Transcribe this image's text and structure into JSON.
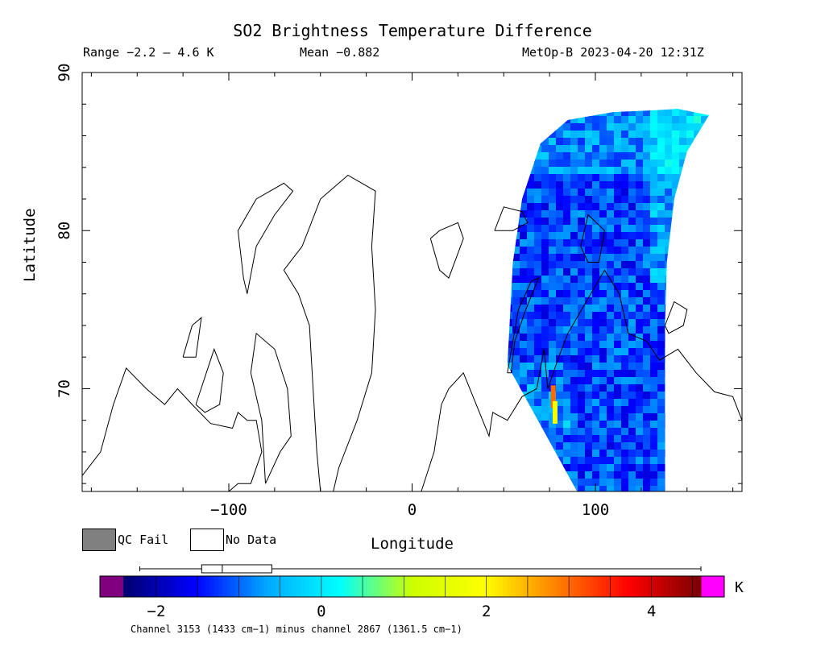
{
  "title": "SO2 Brightness Temperature Difference",
  "header": {
    "range": "Range −2.2 – 4.6 K",
    "mean": "Mean −0.882",
    "satellite_time": "MetOp-B 2023-04-20 12:31Z"
  },
  "legend": {
    "qc_fail": "QC Fail",
    "no_data": "No Data"
  },
  "colorbar": {
    "min": -2.4,
    "max": 4.6,
    "ticks": [
      -2,
      0,
      2,
      4
    ],
    "tick_labels": [
      "−2",
      "0",
      "2",
      "4"
    ],
    "units": "K",
    "under_color": "#800080",
    "over_color": "#ff00ff",
    "stops": [
      "#00006e",
      "#0000ff",
      "#00aaff",
      "#00ffff",
      "#ccff00",
      "#ffff00",
      "#ff8000",
      "#ff0000",
      "#7a0000"
    ],
    "boxplot": {
      "min": -2.2,
      "q1": -1.45,
      "median": -1.2,
      "q3": -0.6,
      "max": 4.6
    }
  },
  "footer": "Channel 3153 (1433 cm−1) minus channel 2867 (1361.5 cm−1)",
  "chart_data": {
    "type": "heatmap",
    "title": "SO2 Brightness Temperature Difference",
    "xlabel": "Longitude",
    "ylabel": "Latitude",
    "xlim": [
      -180,
      180
    ],
    "ylim": [
      63.5,
      90
    ],
    "xticks": [
      -100,
      0,
      100
    ],
    "xtick_labels": [
      "−100",
      "0",
      "100"
    ],
    "yticks": [
      70,
      80,
      90
    ],
    "ytick_labels": [
      "70",
      "80",
      "90"
    ],
    "swath": {
      "description_value_range": [
        -2.2,
        4.6
      ],
      "mean": -0.882,
      "lon_west_edge": [
        [
          52,
          71.5
        ],
        [
          55,
          78
        ],
        [
          60,
          82
        ],
        [
          70,
          85.5
        ],
        [
          85,
          87
        ],
        [
          110,
          87.5
        ],
        [
          130,
          87.6
        ],
        [
          145,
          87.7
        ],
        [
          162,
          87.3
        ]
      ],
      "lon_east_edge": [
        [
          162,
          87.3
        ],
        [
          150,
          85
        ],
        [
          143,
          82
        ],
        [
          139,
          78
        ],
        [
          138,
          74
        ],
        [
          138,
          63.5
        ]
      ],
      "lon_bottom": [
        [
          138,
          63.5
        ],
        [
          90,
          63.5
        ]
      ],
      "dominant_value": -1.2,
      "high_values": [
        {
          "lon": 77,
          "lat": 69.5,
          "value": 3.0
        },
        {
          "lon": 78,
          "lat": 68.5,
          "value": 1.8
        }
      ]
    },
    "grid": false,
    "legend": [
      "QC Fail",
      "No Data"
    ]
  },
  "colors": {
    "frame": "#000000",
    "coast": "#000000",
    "background": "#ffffff"
  }
}
